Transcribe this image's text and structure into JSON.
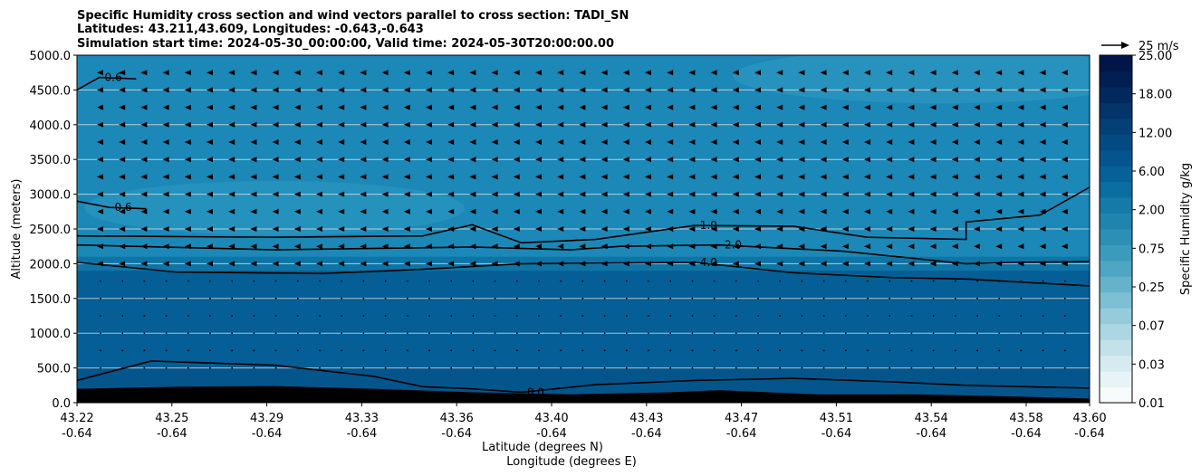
{
  "chart_data": {
    "type": "contour",
    "title_lines": [
      "Specific Humidity cross section and wind vectors parallel to cross section: TADI_SN",
      "Latitudes: 43.211,43.609, Longitudes: -0.643,-0.643",
      "Simulation start time: 2024-05-30_00:00:00, Valid time: 2024-05-30T20:00:00.00"
    ],
    "xlabel_lat": "Latitude (degrees N)",
    "xlabel_lon": "Longitude (degrees E)",
    "ylabel": "Altitude (meters)",
    "x_range": [
      43.22,
      43.6
    ],
    "ylim": [
      0,
      5000
    ],
    "x_ticks": [
      {
        "lat": "43.22",
        "lon": "-0.64"
      },
      {
        "lat": "43.25",
        "lon": "-0.64"
      },
      {
        "lat": "43.29",
        "lon": "-0.64"
      },
      {
        "lat": "43.33",
        "lon": "-0.64"
      },
      {
        "lat": "43.36",
        "lon": "-0.64"
      },
      {
        "lat": "43.40",
        "lon": "-0.64"
      },
      {
        "lat": "43.43",
        "lon": "-0.64"
      },
      {
        "lat": "43.47",
        "lon": "-0.64"
      },
      {
        "lat": "43.51",
        "lon": "-0.64"
      },
      {
        "lat": "43.54",
        "lon": "-0.64"
      },
      {
        "lat": "43.58",
        "lon": "-0.64"
      },
      {
        "lat": "43.60",
        "lon": "-0.64"
      }
    ],
    "y_ticks": [
      "0.0",
      "500.0",
      "1000.0",
      "1500.0",
      "2000.0",
      "2500.0",
      "3000.0",
      "3500.0",
      "4000.0",
      "4500.0",
      "5000.0"
    ],
    "y_tick_values": [
      0,
      500,
      1000,
      1500,
      2000,
      2500,
      3000,
      3500,
      4000,
      4500,
      5000
    ],
    "grid": "horizontal",
    "colorbar": {
      "label": "Specific Humidity g/kg",
      "levels": [
        "0.01",
        "0.03",
        "0.07",
        "0.25",
        "0.75",
        "2.00",
        "6.00",
        "12.00",
        "18.00",
        "25.00"
      ],
      "colors": [
        "#f7fbfc",
        "#e7f3f6",
        "#d6ebf0",
        "#c2e1ea",
        "#acd6e2",
        "#95cbdb",
        "#7dbfd3",
        "#65b2ca",
        "#4fa6c2",
        "#3c9bbb",
        "#2b90b4",
        "#1f85ae",
        "#157aa7",
        "#0b6ea0",
        "#056198",
        "#04558e",
        "#044a82",
        "#043f76",
        "#03346a",
        "#02295e",
        "#011f52",
        "#011547"
      ]
    },
    "wind_reference": {
      "label": "25 m/s",
      "speed": 25
    },
    "contours": [
      {
        "label": "1.0",
        "level": 1.0,
        "points": [
          [
            43.22,
            2400
          ],
          [
            43.3,
            2380
          ],
          [
            43.36,
            2400
          ],
          [
            43.38,
            2560
          ],
          [
            43.4,
            2300
          ],
          [
            43.43,
            2350
          ],
          [
            43.47,
            2550
          ],
          [
            43.51,
            2540
          ],
          [
            43.54,
            2380
          ],
          [
            43.58,
            2350
          ],
          [
            43.58,
            2600
          ],
          [
            43.61,
            2700
          ],
          [
            43.63,
            3100
          ]
        ]
      },
      {
        "label": "2.0",
        "level": 2.0,
        "points": [
          [
            43.22,
            2270
          ],
          [
            43.3,
            2200
          ],
          [
            43.38,
            2240
          ],
          [
            43.42,
            2200
          ],
          [
            43.44,
            2250
          ],
          [
            43.48,
            2270
          ],
          [
            43.53,
            2180
          ],
          [
            43.58,
            2000
          ],
          [
            43.6,
            2020
          ],
          [
            43.63,
            2030
          ]
        ]
      },
      {
        "label": "4.0",
        "level": 4.0,
        "points": [
          [
            43.22,
            2020
          ],
          [
            43.26,
            1880
          ],
          [
            43.32,
            1860
          ],
          [
            43.36,
            1920
          ],
          [
            43.4,
            2000
          ],
          [
            43.47,
            2020
          ],
          [
            43.51,
            1870
          ],
          [
            43.55,
            1800
          ],
          [
            43.58,
            1780
          ],
          [
            43.63,
            1680
          ]
        ]
      },
      {
        "label": "8.0",
        "level": 8.0,
        "points": [
          [
            43.22,
            320
          ],
          [
            43.25,
            600
          ],
          [
            43.3,
            540
          ],
          [
            43.34,
            380
          ],
          [
            43.36,
            230
          ],
          [
            43.38,
            200
          ],
          [
            43.4,
            150
          ],
          [
            43.43,
            260
          ],
          [
            43.47,
            320
          ],
          [
            43.51,
            350
          ],
          [
            43.55,
            300
          ],
          [
            43.58,
            250
          ],
          [
            43.63,
            210
          ]
        ]
      },
      {
        "label": "0.6",
        "level": 0.6,
        "points": [
          [
            43.22,
            4500
          ],
          [
            43.229,
            4680
          ],
          [
            43.244,
            4660
          ]
        ]
      },
      {
        "label": "0.6",
        "level": 0.6,
        "points": [
          [
            43.22,
            2900
          ],
          [
            43.233,
            2810
          ],
          [
            43.248,
            2790
          ]
        ]
      }
    ],
    "wind_description": "mostly southward (leftward) vectors above 2000 m, near-zero below"
  }
}
